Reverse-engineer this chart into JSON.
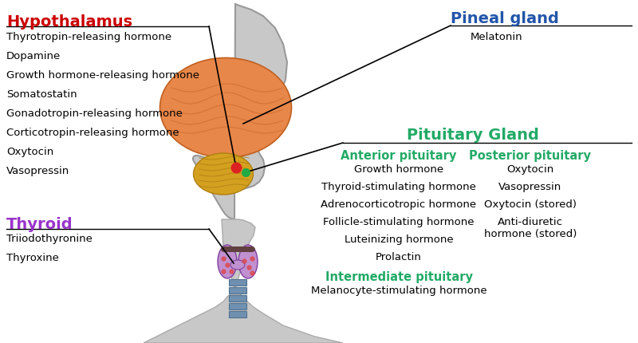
{
  "bg_color": "#ffffff",
  "hypothalamus_label": "Hypothalamus",
  "hypothalamus_color": "#cc0000",
  "hypothalamus_items": [
    "Thyrotropin-releasing hormone",
    "Dopamine",
    "Growth hormone-releasing hormone",
    "Somatostatin",
    "Gonadotropin-releasing hormone",
    "Corticotropin-releasing hormone",
    "Oxytocin",
    "Vasopressin"
  ],
  "thyroid_label": "Thyroid",
  "thyroid_color": "#9933cc",
  "thyroid_items": [
    "Triiodothyronine",
    "Thyroxine"
  ],
  "pineal_label": "Pineal gland",
  "pineal_color": "#2255aa",
  "pineal_items": [
    "Melatonin"
  ],
  "pituitary_label": "Pituitary Gland",
  "pituitary_color": "#22aa66",
  "anterior_label": "Anterior pituitary",
  "anterior_color": "#22aa66",
  "anterior_items": [
    "Growth hormone",
    "Thyroid-stimulating hormone",
    "Adrenocorticotropic hormone",
    "Follicle-stimulating hormone",
    "Luteinizing hormone",
    "Prolactin"
  ],
  "intermediate_label": "Intermediate pituitary",
  "intermediate_color": "#22aa66",
  "intermediate_items": [
    "Melanocyte-stimulating hormone"
  ],
  "posterior_label": "Posterior pituitary",
  "posterior_color": "#22aa66",
  "posterior_items": [
    "Oxytocin",
    "Vasopressin",
    "Oxytocin (stored)",
    "Anti-diuretic\nhormone (stored)"
  ],
  "line_color": "#000000",
  "text_color": "#000000",
  "item_fontsize": 9.5,
  "label_fontsize": 14,
  "sublabel_fontsize": 10.5,
  "head_color": "#c8c8c8",
  "brain_color": "#e8874a",
  "brain_edge": "#c06020",
  "cerebellum_color": "#d4a020",
  "cerebellum_edge": "#b08010",
  "hypo_dot_color": "#dd2222",
  "pit_dot_color": "#22aa44",
  "thyroid_fill": "#c090d0",
  "thyroid_edge": "#8040a0",
  "trachea_fill": "#7090b0",
  "trachea_edge": "#507090",
  "hyoid_color": "#604040"
}
